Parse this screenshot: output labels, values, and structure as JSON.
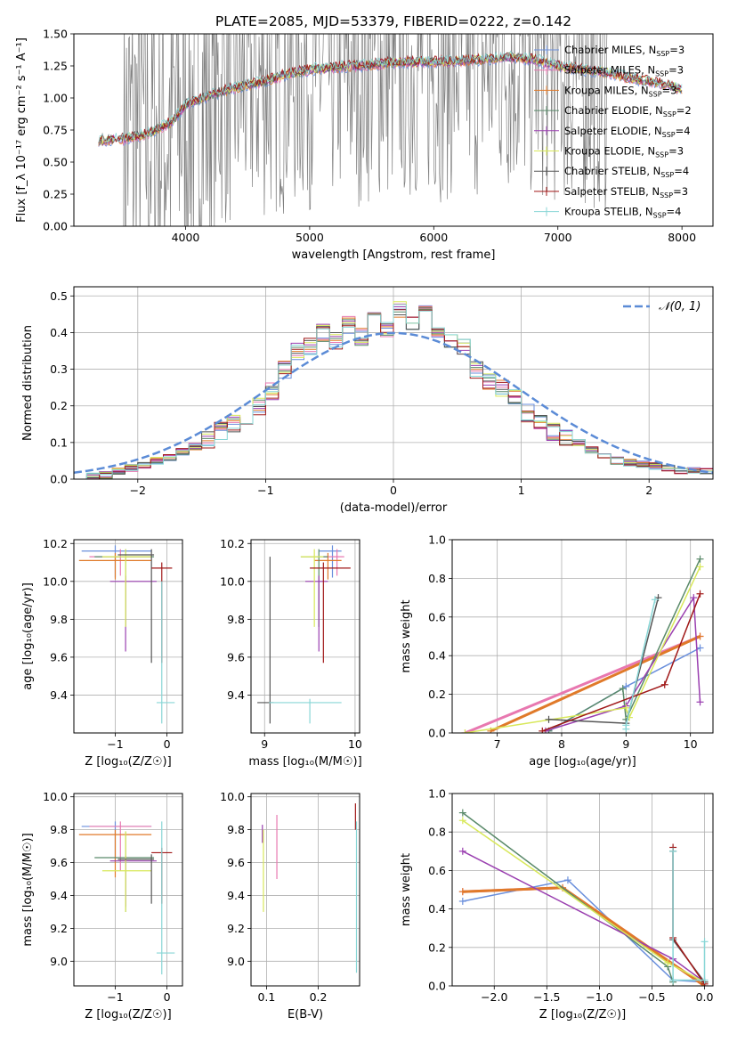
{
  "figure_title": "PLATE=2085, MJD=53379, FIBERID=0222, z=0.142",
  "colors": {
    "chabrier_miles": "#6a8fdc",
    "salpeter_miles": "#e878b0",
    "kroupa_miles": "#e07a2a",
    "chabrier_elodie": "#5a8a6a",
    "salpeter_elodie": "#9a3fb0",
    "kroupa_elodie": "#d8e85a",
    "chabrier_stelib": "#555555",
    "salpeter_stelib": "#a01818",
    "kroupa_stelib": "#88d6d6",
    "data": "#808080",
    "normal": "#5b8bd6"
  },
  "chart_data": [
    {
      "id": "spectrum",
      "type": "line",
      "title": "PLATE=2085, MJD=53379, FIBERID=0222, z=0.142",
      "xlabel": "wavelength [Angstrom, rest frame]",
      "ylabel": "Flux [f_λ 10⁻¹⁷ erg cm⁻² s⁻¹ A⁻¹]",
      "xlim": [
        3100,
        8250
      ],
      "ylim": [
        0,
        1.5
      ],
      "xticks": [
        4000,
        5000,
        6000,
        7000,
        8000
      ],
      "yticks": [
        "0.00",
        "0.25",
        "0.50",
        "0.75",
        "1.00",
        "1.25",
        "1.50"
      ],
      "grid": false,
      "legend_position": "top-right",
      "series": [
        {
          "name": "Chabrier MILES, N_SSP=3",
          "color_key": "chabrier_miles",
          "legend_label": "Chabrier MILES, N",
          "legend_sub": "SSP",
          "legend_tail": "=3"
        },
        {
          "name": "Salpeter MILES, N_SSP=3",
          "color_key": "salpeter_miles",
          "legend_label": "Salpeter MILES, N",
          "legend_sub": "SSP",
          "legend_tail": "=3"
        },
        {
          "name": "Kroupa MILES, N_SSP=3",
          "color_key": "kroupa_miles",
          "legend_label": "Kroupa MILES, N",
          "legend_sub": "SSP",
          "legend_tail": "=3"
        },
        {
          "name": "Chabrier ELODIE, N_SSP=2",
          "color_key": "chabrier_elodie",
          "legend_label": "Chabrier ELODIE, N",
          "legend_sub": "SSP",
          "legend_tail": "=2"
        },
        {
          "name": "Salpeter ELODIE, N_SSP=4",
          "color_key": "salpeter_elodie",
          "legend_label": "Salpeter ELODIE, N",
          "legend_sub": "SSP",
          "legend_tail": "=4"
        },
        {
          "name": "Kroupa ELODIE, N_SSP=3",
          "color_key": "kroupa_elodie",
          "legend_label": "Kroupa ELODIE, N",
          "legend_sub": "SSP",
          "legend_tail": "=3"
        },
        {
          "name": "Chabrier STELIB, N_SSP=4",
          "color_key": "chabrier_stelib",
          "legend_label": "Chabrier STELIB, N",
          "legend_sub": "SSP",
          "legend_tail": "=4"
        },
        {
          "name": "Salpeter STELIB, N_SSP=3",
          "color_key": "salpeter_stelib",
          "legend_label": "Salpeter STELIB, N",
          "legend_sub": "SSP",
          "legend_tail": "=3"
        },
        {
          "name": "Kroupa STELIB, N_SSP=4",
          "color_key": "kroupa_stelib",
          "legend_label": "Kroupa STELIB, N",
          "legend_sub": "SSP",
          "legend_tail": "=4"
        }
      ],
      "model_curve": {
        "x": [
          3300,
          3500,
          3700,
          3900,
          4000,
          4200,
          4400,
          4600,
          4800,
          5000,
          5200,
          5400,
          5600,
          5800,
          6000,
          6200,
          6400,
          6600,
          6800,
          7000,
          7200,
          7400,
          7600,
          7800,
          8000
        ],
        "y": [
          0.67,
          0.68,
          0.72,
          0.82,
          0.95,
          1.02,
          1.08,
          1.12,
          1.18,
          1.22,
          1.24,
          1.25,
          1.27,
          1.28,
          1.28,
          1.29,
          1.3,
          1.32,
          1.3,
          1.25,
          1.22,
          1.2,
          1.15,
          1.12,
          1.07
        ]
      },
      "data_range": [
        3500,
        7400
      ]
    },
    {
      "id": "residuals",
      "type": "histogram",
      "xlabel": "(data-model)/error",
      "ylabel": "Normed distribution",
      "xlim": [
        -2.5,
        2.5
      ],
      "ylim": [
        0,
        0.525
      ],
      "xticks": [
        "−2",
        "−1",
        "0",
        "1",
        "2"
      ],
      "xtick_values": [
        -2,
        -1,
        0,
        1,
        2
      ],
      "yticks": [
        "0.0",
        "0.1",
        "0.2",
        "0.3",
        "0.4",
        "0.5"
      ],
      "ytick_values": [
        0,
        0.1,
        0.2,
        0.3,
        0.4,
        0.5
      ],
      "grid": true,
      "legend_position": "top-right",
      "legend_label": "𝒩(0, 1)",
      "bin_width": 0.1,
      "bin_start": -2.5,
      "hist_base": [
        0.005,
        0.008,
        0.012,
        0.02,
        0.03,
        0.04,
        0.05,
        0.06,
        0.075,
        0.09,
        0.11,
        0.13,
        0.15,
        0.17,
        0.2,
        0.24,
        0.3,
        0.35,
        0.36,
        0.4,
        0.38,
        0.42,
        0.39,
        0.44,
        0.41,
        0.46,
        0.42,
        0.45,
        0.4,
        0.38,
        0.36,
        0.3,
        0.27,
        0.25,
        0.22,
        0.18,
        0.15,
        0.13,
        0.11,
        0.1,
        0.08,
        0.06,
        0.05,
        0.045,
        0.04,
        0.035,
        0.03,
        0.02,
        0.025,
        0.02
      ]
    },
    {
      "id": "age_vs_Z",
      "type": "errorbar",
      "xlabel": "Z [log₁₀(Z/Z☉)]",
      "ylabel": "age  [log₁₀(age/yr)]",
      "xlim": [
        -1.8,
        0.3
      ],
      "ylim": [
        9.2,
        10.22
      ],
      "xticks": [
        "−1",
        "0"
      ],
      "xtick_values": [
        -1,
        0
      ],
      "yticks": [
        "9.4",
        "9.6",
        "9.8",
        "10.0",
        "10.2"
      ],
      "ytick_values": [
        9.4,
        9.6,
        9.8,
        10.0,
        10.2
      ],
      "points": [
        {
          "c": "chabrier_miles",
          "x": -1.0,
          "xl": -1.65,
          "xh": -0.3,
          "y": 10.16,
          "yl": 10.02,
          "yh": 10.19
        },
        {
          "c": "salpeter_miles",
          "x": -0.9,
          "xl": -1.5,
          "xh": -0.3,
          "y": 10.13,
          "yl": 10.03,
          "yh": 10.17
        },
        {
          "c": "kroupa_miles",
          "x": -1.0,
          "xl": -1.7,
          "xh": -0.3,
          "y": 10.11,
          "yl": 10.01,
          "yh": 10.15
        },
        {
          "c": "chabrier_elodie",
          "x": -0.8,
          "xl": -1.4,
          "xh": -0.25,
          "y": 10.13,
          "yl": 9.76,
          "yh": 10.17
        },
        {
          "c": "salpeter_elodie",
          "x": -0.8,
          "xl": -1.1,
          "xh": -0.2,
          "y": 10.0,
          "yl": 9.63,
          "yh": 10.03
        },
        {
          "c": "kroupa_elodie",
          "x": -0.8,
          "xl": -1.25,
          "xh": -0.3,
          "y": 10.13,
          "yl": 9.76,
          "yh": 10.17
        },
        {
          "c": "chabrier_stelib",
          "x": -0.3,
          "xl": -0.95,
          "xh": -0.25,
          "y": 10.14,
          "yl": 9.57,
          "yh": 10.17
        },
        {
          "c": "salpeter_stelib",
          "x": -0.1,
          "xl": -0.3,
          "xh": 0.1,
          "y": 10.07,
          "yl": 9.57,
          "yh": 10.1
        },
        {
          "c": "kroupa_stelib",
          "x": -0.1,
          "xl": -0.2,
          "xh": 0.15,
          "y": 9.36,
          "yl": 9.25,
          "yh": 10.0
        }
      ]
    },
    {
      "id": "age_vs_mass",
      "type": "errorbar",
      "xlabel": "mass [log₁₀(M/M☉)]",
      "ylabel": "",
      "xlim": [
        8.85,
        10.05
      ],
      "ylim": [
        9.2,
        10.22
      ],
      "xticks": [
        "9",
        "10"
      ],
      "xtick_values": [
        9,
        10
      ],
      "yticks": [
        "9.4",
        "9.6",
        "9.8",
        "10.0",
        "10.2"
      ],
      "ytick_values": [
        9.4,
        9.6,
        9.8,
        10.0,
        10.2
      ],
      "points": [
        {
          "c": "chabrier_miles",
          "x": 9.75,
          "xl": 9.6,
          "xh": 9.85,
          "y": 10.16,
          "yl": 10.02,
          "yh": 10.19
        },
        {
          "c": "salpeter_miles",
          "x": 9.8,
          "xl": 9.65,
          "xh": 9.88,
          "y": 10.13,
          "yl": 10.03,
          "yh": 10.17
        },
        {
          "c": "kroupa_miles",
          "x": 9.7,
          "xl": 9.55,
          "xh": 9.85,
          "y": 10.11,
          "yl": 10.01,
          "yh": 10.15
        },
        {
          "c": "chabrier_elodie",
          "x": 9.6,
          "xl": 9.4,
          "xh": 9.7,
          "y": 10.13,
          "yl": 9.76,
          "yh": 10.17
        },
        {
          "c": "salpeter_elodie",
          "x": 9.6,
          "xl": 9.45,
          "xh": 9.7,
          "y": 10.0,
          "yl": 9.63,
          "yh": 10.03
        },
        {
          "c": "kroupa_elodie",
          "x": 9.55,
          "xl": 9.4,
          "xh": 9.65,
          "y": 10.13,
          "yl": 9.76,
          "yh": 10.17
        },
        {
          "c": "chabrier_stelib",
          "x": 9.06,
          "xl": 8.92,
          "xh": 9.1,
          "y": 9.36,
          "yl": 9.25,
          "yh": 10.13
        },
        {
          "c": "salpeter_stelib",
          "x": 9.65,
          "xl": 9.5,
          "xh": 9.95,
          "y": 10.07,
          "yl": 9.57,
          "yh": 10.1
        },
        {
          "c": "kroupa_stelib",
          "x": 9.5,
          "xl": 9.05,
          "xh": 9.85,
          "y": 9.36,
          "yl": 9.25,
          "yh": 9.38
        }
      ]
    },
    {
      "id": "weight_vs_age",
      "type": "line",
      "xlabel": "age  [log₁₀(age/yr)]",
      "ylabel": "mass weight",
      "xlim": [
        6.3,
        10.35
      ],
      "ylim": [
        0,
        1.0
      ],
      "xticks": [
        "7",
        "8",
        "9",
        "10"
      ],
      "xtick_values": [
        7,
        8,
        9,
        10
      ],
      "yticks": [
        "0.0",
        "0.2",
        "0.4",
        "0.6",
        "0.8",
        "1.0"
      ],
      "ytick_values": [
        0,
        0.2,
        0.4,
        0.6,
        0.8,
        1.0
      ],
      "grid": true,
      "series": [
        {
          "c": "chabrier_miles",
          "w": 1.5,
          "x": [
            7.8,
            9.0,
            10.15
          ],
          "y": [
            0.01,
            0.24,
            0.44
          ]
        },
        {
          "c": "salpeter_miles",
          "w": 3,
          "x": [
            6.5,
            10.15
          ],
          "y": [
            0.0,
            0.5
          ]
        },
        {
          "c": "kroupa_miles",
          "w": 3,
          "x": [
            6.9,
            10.15
          ],
          "y": [
            0.01,
            0.5
          ]
        },
        {
          "c": "chabrier_elodie",
          "w": 1.5,
          "x": [
            7.8,
            8.95,
            9.0,
            10.15
          ],
          "y": [
            0.01,
            0.23,
            0.07,
            0.9
          ]
        },
        {
          "c": "salpeter_elodie",
          "w": 1.5,
          "x": [
            7.75,
            9.0,
            10.05,
            10.15
          ],
          "y": [
            0.01,
            0.14,
            0.7,
            0.16
          ]
        },
        {
          "c": "kroupa_elodie",
          "w": 1.5,
          "x": [
            6.5,
            9.0,
            9.05,
            10.15
          ],
          "y": [
            0.0,
            0.13,
            0.08,
            0.86
          ]
        },
        {
          "c": "chabrier_stelib",
          "w": 1.5,
          "x": [
            7.8,
            9.0,
            9.5
          ],
          "y": [
            0.07,
            0.05,
            0.7
          ]
        },
        {
          "c": "salpeter_stelib",
          "w": 1.5,
          "x": [
            7.7,
            9.6,
            10.15
          ],
          "y": [
            0.01,
            0.25,
            0.72
          ]
        },
        {
          "c": "kroupa_stelib",
          "w": 1.5,
          "x": [
            9.0,
            9.0,
            9.45
          ],
          "y": [
            0.02,
            0.04,
            0.69
          ]
        }
      ]
    },
    {
      "id": "mass_vs_Z",
      "type": "errorbar",
      "xlabel": "Z [log₁₀(Z/Z☉)]",
      "ylabel": "mass [log₁₀(M/M☉)]",
      "xlim": [
        -1.8,
        0.3
      ],
      "ylim": [
        8.85,
        10.02
      ],
      "xticks": [
        "−1",
        "0"
      ],
      "xtick_values": [
        -1,
        0
      ],
      "yticks": [
        "9.0",
        "9.2",
        "9.4",
        "9.6",
        "9.8",
        "10.0"
      ],
      "ytick_values": [
        9.0,
        9.2,
        9.4,
        9.6,
        9.8,
        10.0
      ],
      "points": [
        {
          "c": "chabrier_miles",
          "x": -1.0,
          "xl": -1.65,
          "xh": -0.3,
          "y": 9.82,
          "yl": 9.6,
          "yh": 9.85
        },
        {
          "c": "salpeter_miles",
          "x": -0.9,
          "xl": -1.5,
          "xh": -0.3,
          "y": 9.82,
          "yl": 9.55,
          "yh": 9.85
        },
        {
          "c": "kroupa_miles",
          "x": -1.0,
          "xl": -1.7,
          "xh": -0.3,
          "y": 9.77,
          "yl": 9.51,
          "yh": 9.8
        },
        {
          "c": "chabrier_elodie",
          "x": -0.8,
          "xl": -1.4,
          "xh": -0.25,
          "y": 9.63,
          "yl": 9.3,
          "yh": 9.79
        },
        {
          "c": "salpeter_elodie",
          "x": -0.8,
          "xl": -1.1,
          "xh": -0.2,
          "y": 9.61,
          "yl": 9.33,
          "yh": 9.64
        },
        {
          "c": "kroupa_elodie",
          "x": -0.8,
          "xl": -1.25,
          "xh": -0.3,
          "y": 9.55,
          "yl": 9.3,
          "yh": 9.79
        },
        {
          "c": "chabrier_stelib",
          "x": -0.3,
          "xl": -0.95,
          "xh": -0.25,
          "y": 9.62,
          "yl": 9.35,
          "yh": 9.65
        },
        {
          "c": "salpeter_stelib",
          "x": -0.1,
          "xl": -0.3,
          "xh": 0.1,
          "y": 9.66,
          "yl": 9.35,
          "yh": 9.69
        },
        {
          "c": "kroupa_stelib",
          "x": -0.1,
          "xl": -0.2,
          "xh": 0.15,
          "y": 9.05,
          "yl": 8.92,
          "yh": 9.85
        }
      ]
    },
    {
      "id": "mass_vs_ebv",
      "type": "errorbar",
      "xlabel": "E(B-V)",
      "ylabel": "",
      "xlim": [
        0.07,
        0.28
      ],
      "ylim": [
        8.85,
        10.02
      ],
      "xticks": [
        "0.1",
        "0.2"
      ],
      "xtick_values": [
        0.1,
        0.2
      ],
      "yticks": [
        "9.0",
        "9.2",
        "9.4",
        "9.6",
        "9.8",
        "10.0"
      ],
      "ytick_values": [
        9.0,
        9.2,
        9.4,
        9.6,
        9.8,
        10.0
      ],
      "points": [
        {
          "c": "salpeter_elodie",
          "x": 0.092,
          "xl": 0.092,
          "xh": 0.092,
          "y": 9.79,
          "yl": 9.72,
          "yh": 9.83
        },
        {
          "c": "kroupa_elodie",
          "x": 0.094,
          "xl": 0.094,
          "xh": 0.094,
          "y": 9.6,
          "yl": 9.3,
          "yh": 9.8
        },
        {
          "c": "salpeter_miles",
          "x": 0.12,
          "xl": 0.12,
          "xh": 0.12,
          "y": 9.75,
          "yl": 9.5,
          "yh": 9.89
        },
        {
          "c": "salpeter_stelib",
          "x": 0.272,
          "xl": 0.272,
          "xh": 0.272,
          "y": 9.85,
          "yl": 9.8,
          "yh": 9.96
        },
        {
          "c": "kroupa_stelib",
          "x": 0.274,
          "xl": 0.274,
          "xh": 0.274,
          "y": 9.1,
          "yl": 8.93,
          "yh": 9.85
        }
      ]
    },
    {
      "id": "weight_vs_Z",
      "type": "line",
      "xlabel": "Z [log₁₀(Z/Z☉)]",
      "ylabel": "mass weight",
      "xlim": [
        -2.4,
        0.08
      ],
      "ylim": [
        0,
        1.0
      ],
      "xticks": [
        "−2.0",
        "−1.5",
        "−1.0",
        "−0.5",
        "0.0"
      ],
      "xtick_values": [
        -2.0,
        -1.5,
        -1.0,
        -0.5,
        0.0
      ],
      "yticks": [
        "0.0",
        "0.2",
        "0.4",
        "0.6",
        "0.8",
        "1.0"
      ],
      "ytick_values": [
        0,
        0.2,
        0.4,
        0.6,
        0.8,
        1.0
      ],
      "grid": true,
      "series": [
        {
          "c": "chabrier_miles",
          "w": 1.5,
          "x": [
            -2.3,
            -1.3,
            -0.3,
            0.0
          ],
          "y": [
            0.44,
            0.55,
            0.03,
            0.02
          ]
        },
        {
          "c": "salpeter_miles",
          "w": 3,
          "x": [
            -2.3,
            -1.35,
            0.0
          ],
          "y": [
            0.49,
            0.51,
            0.0
          ]
        },
        {
          "c": "kroupa_miles",
          "w": 3,
          "x": [
            -2.3,
            -1.35,
            0.0
          ],
          "y": [
            0.49,
            0.51,
            0.0
          ]
        },
        {
          "c": "chabrier_elodie",
          "w": 1.5,
          "x": [
            -2.3,
            -0.35,
            -0.3
          ],
          "y": [
            0.9,
            0.1,
            0.02
          ]
        },
        {
          "c": "salpeter_elodie",
          "w": 1.5,
          "x": [
            -2.3,
            -0.3,
            0.0
          ],
          "y": [
            0.7,
            0.14,
            0.02
          ]
        },
        {
          "c": "kroupa_elodie",
          "w": 1.5,
          "x": [
            -2.3,
            -0.35,
            0.0
          ],
          "y": [
            0.86,
            0.12,
            0.02
          ]
        },
        {
          "c": "chabrier_stelib",
          "w": 1.5,
          "x": [
            -0.3,
            -0.3,
            0.0
          ],
          "y": [
            0.7,
            0.24,
            0.02
          ]
        },
        {
          "c": "salpeter_stelib",
          "w": 1.5,
          "x": [
            -0.3,
            -0.3,
            0.0
          ],
          "y": [
            0.72,
            0.25,
            0.01
          ]
        },
        {
          "c": "kroupa_stelib",
          "w": 1.5,
          "x": [
            -0.3,
            -0.3,
            0.0,
            0.0
          ],
          "y": [
            0.7,
            0.03,
            0.03,
            0.23
          ]
        }
      ]
    }
  ]
}
